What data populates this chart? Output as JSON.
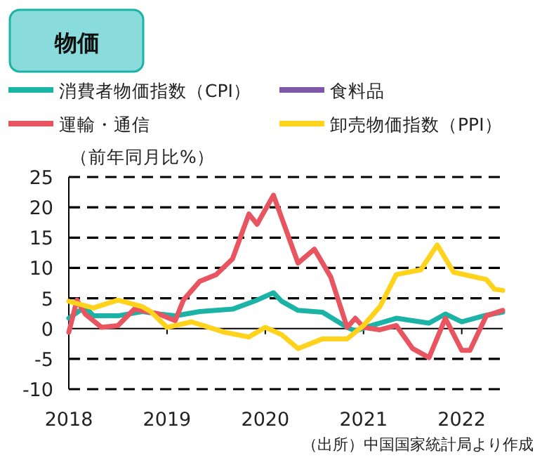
{
  "chart_data": {
    "type": "line",
    "title": "物価",
    "ylabel": "（前年同月比%）",
    "annotations": [
      "（出所）中国国家統計局より作成"
    ],
    "xlim": [
      "2018-01",
      "2022-06"
    ],
    "xticks": [
      {
        "value": "2018-01",
        "label": "2018"
      },
      {
        "value": "2019-01",
        "label": "2019"
      },
      {
        "value": "2020-01",
        "label": "2020"
      },
      {
        "value": "2021-01",
        "label": "2021"
      },
      {
        "value": "2022-01",
        "label": "2022"
      }
    ],
    "ylim": [
      -10,
      25
    ],
    "yticks": [
      -10,
      -5,
      0,
      5,
      10,
      15,
      20,
      25
    ],
    "grid": "y",
    "legend": "top",
    "marker": "none",
    "line_style": "solid",
    "series": [
      {
        "name": "消費者物価指数（CPI）",
        "color": "#1ab3a6",
        "x": [
          "2018-01",
          "2018-03",
          "2018-04",
          "2018-07",
          "2018-10",
          "2018-12",
          "2019-02",
          "2019-05",
          "2019-09",
          "2019-12",
          "2020-02",
          "2020-03",
          "2020-05",
          "2020-08",
          "2020-11",
          "2020-12",
          "2021-02",
          "2021-05",
          "2021-09",
          "2021-11",
          "2022-01",
          "2022-04",
          "2022-06"
        ],
        "values": [
          1.7,
          3.6,
          2.1,
          2.1,
          2.8,
          2.4,
          2.1,
          2.8,
          3.2,
          4.7,
          5.9,
          4.5,
          3.0,
          2.7,
          0.2,
          -0.4,
          0.5,
          1.7,
          0.9,
          2.4,
          1.1,
          2.2,
          2.7
        ]
      },
      {
        "name": "食料品",
        "color": "#7b59a8"
      },
      {
        "name": "運輸・通信",
        "color": "#e8545f",
        "x": [
          "2018-01",
          "2018-02",
          "2018-03",
          "2018-05",
          "2018-07",
          "2018-09",
          "2018-12",
          "2019-02",
          "2019-03",
          "2019-05",
          "2019-07",
          "2019-09",
          "2019-11",
          "2019-12",
          "2020-02",
          "2020-05",
          "2020-07",
          "2020-09",
          "2020-11",
          "2020-12",
          "2021-01",
          "2021-03",
          "2021-05",
          "2021-07",
          "2021-09",
          "2021-11",
          "2022-01",
          "2022-02",
          "2022-04",
          "2022-06"
        ],
        "values": [
          -0.6,
          4.7,
          2.4,
          0.2,
          0.5,
          3.2,
          2.4,
          1.3,
          4.7,
          7.8,
          8.9,
          11.5,
          18.9,
          17.2,
          22,
          10.8,
          13.1,
          8.5,
          0.2,
          1.7,
          0.2,
          -0.2,
          0.5,
          -3.3,
          -4.8,
          1.7,
          -3.6,
          -3.6,
          2.1,
          3.0
        ]
      },
      {
        "name": "卸売物価指数（PPI）",
        "color": "#ffd21b",
        "x": [
          "2018-01",
          "2018-04",
          "2018-07",
          "2018-10",
          "2018-11",
          "2019-01",
          "2019-04",
          "2019-08",
          "2019-11",
          "2020-01",
          "2020-03",
          "2020-05",
          "2020-08",
          "2020-11",
          "2021-01",
          "2021-03",
          "2021-05",
          "2021-08",
          "2021-10",
          "2021-12",
          "2022-04",
          "2022-05",
          "2022-06"
        ],
        "values": [
          4.5,
          3.4,
          4.7,
          3.6,
          2.8,
          0.2,
          1.1,
          -0.6,
          -1.4,
          0.2,
          -1.0,
          -3.3,
          -1.7,
          -1.7,
          0.5,
          3.6,
          8.9,
          9.7,
          13.8,
          9.3,
          8.1,
          6.5,
          6.3
        ]
      }
    ]
  }
}
